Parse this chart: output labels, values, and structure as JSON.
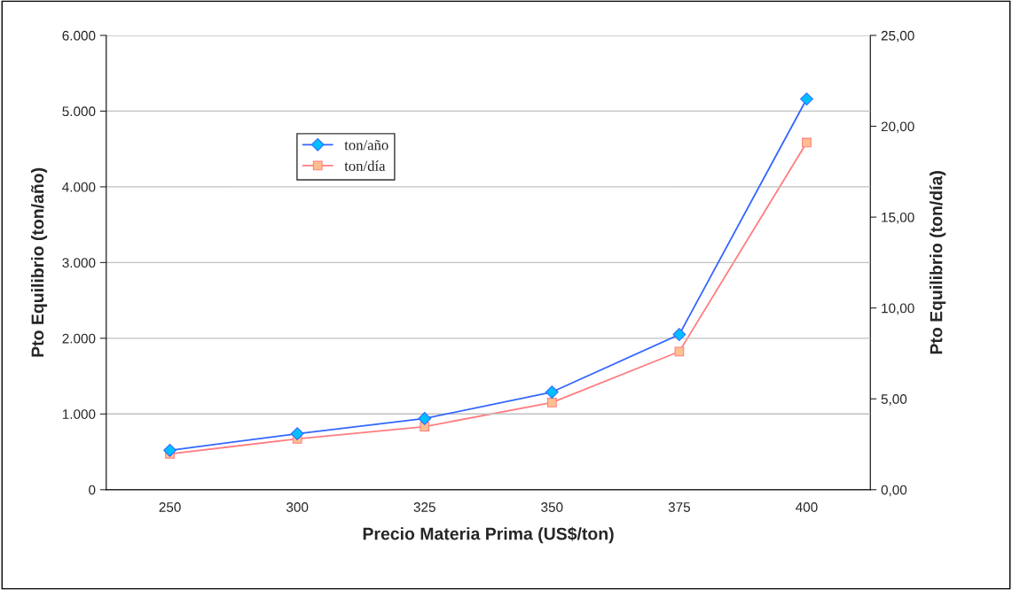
{
  "chart_data": {
    "type": "line",
    "categories": [
      "250",
      "300",
      "325",
      "350",
      "375",
      "400"
    ],
    "series": [
      {
        "name": "ton/año",
        "color": "#3366ff",
        "marker": "diamond",
        "values": [
          520,
          740,
          940,
          1290,
          2050,
          5160
        ]
      },
      {
        "name": "ton/día",
        "color": "#ff7c80",
        "marker": "square",
        "axis": "y2",
        "values": [
          1.97,
          2.8,
          3.47,
          4.8,
          7.6,
          19.1
        ]
      }
    ],
    "xlabel": "Precio Materia Prima (US$/ton)",
    "ylabel": "Pto Equilibrio (ton/año)",
    "y2label": "Pto Equilibrio (ton/día)",
    "ylim": [
      0,
      6000
    ],
    "yticks": [
      0,
      {
        "value": 1000,
        "label": "1.000"
      },
      {
        "value": 2000,
        "label": "2.000"
      },
      {
        "value": 3000,
        "label": "3.000"
      },
      {
        "value": 4000,
        "label": "4.000"
      },
      {
        "value": 5000,
        "label": "5.000"
      },
      {
        "value": 6000,
        "label": "6.000"
      }
    ],
    "y2lim": [
      0,
      25
    ],
    "y2ticks": [
      {
        "value": 0,
        "label": "0,00"
      },
      {
        "value": 5,
        "label": "5,00"
      },
      {
        "value": 10,
        "label": "10,00"
      },
      {
        "value": 15,
        "label": "15,00"
      },
      {
        "value": 20,
        "label": "20,00"
      },
      {
        "value": 25,
        "label": "25,00"
      }
    ],
    "grid": "y",
    "legend": "top left"
  }
}
